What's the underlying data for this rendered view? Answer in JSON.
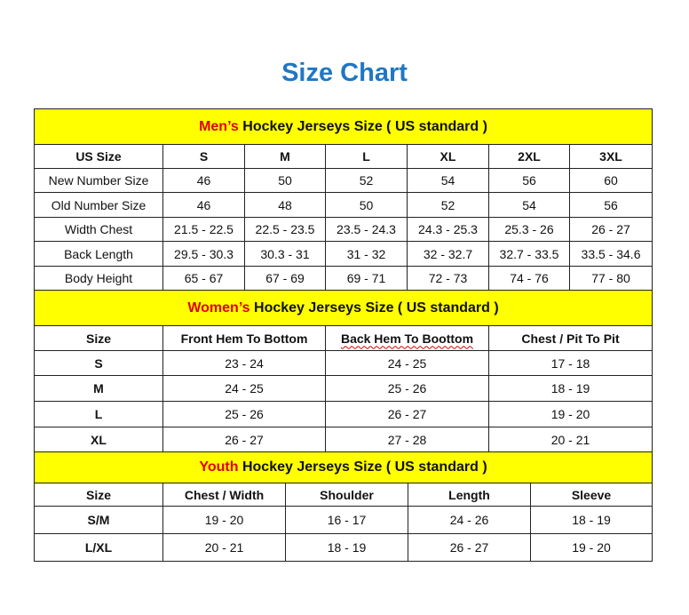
{
  "title": "Size Chart",
  "men": {
    "prefix": "Men’s",
    "heading": " Hockey Jerseys Size ( US standard )",
    "header": [
      "US Size",
      "S",
      "M",
      "L",
      "XL",
      "2XL",
      "3XL"
    ],
    "rows": [
      [
        "New Number Size",
        "46",
        "50",
        "52",
        "54",
        "56",
        "60"
      ],
      [
        "Old Number Size",
        "46",
        "48",
        "50",
        "52",
        "54",
        "56"
      ],
      [
        "Width Chest",
        "21.5 - 22.5",
        "22.5 - 23.5",
        "23.5 - 24.3",
        "24.3 - 25.3",
        "25.3 - 26",
        "26 - 27"
      ],
      [
        "Back Length",
        "29.5 - 30.3",
        "30.3 - 31",
        "31 - 32",
        "32 - 32.7",
        "32.7 - 33.5",
        "33.5 - 34.6"
      ],
      [
        "Body Height",
        "65 - 67",
        "67 - 69",
        "69 - 71",
        "72 - 73",
        "74 - 76",
        "77 - 80"
      ]
    ]
  },
  "women": {
    "prefix": "Women’s",
    "heading": " Hockey Jerseys Size ( US standard )",
    "header": [
      "Size",
      "Front Hem To Bottom",
      "Back Hem To Boottom",
      "Chest / Pit To Pit"
    ],
    "rows": [
      [
        "S",
        "23 - 24",
        "24 - 25",
        "17 - 18"
      ],
      [
        "M",
        "24 - 25",
        "25 - 26",
        "18 - 19"
      ],
      [
        "L",
        "25 - 26",
        "26 - 27",
        "19 - 20"
      ],
      [
        "XL",
        "26 - 27",
        "27 - 28",
        "20 - 21"
      ]
    ]
  },
  "youth": {
    "prefix": "Youth",
    "heading": " Hockey Jerseys Size ( US standard )",
    "header": [
      "Size",
      "Chest / Width",
      "Shoulder",
      "Length",
      "Sleeve"
    ],
    "rows": [
      [
        "S/M",
        "19 - 20",
        "16 - 17",
        "24 - 26",
        "18 - 19"
      ],
      [
        "L/XL",
        "20 - 21",
        "18 - 19",
        "26 - 27",
        "19 - 20"
      ]
    ]
  },
  "colors": {
    "title": "#1f77c4",
    "band": "#ffff00",
    "accent": "#e00000"
  }
}
